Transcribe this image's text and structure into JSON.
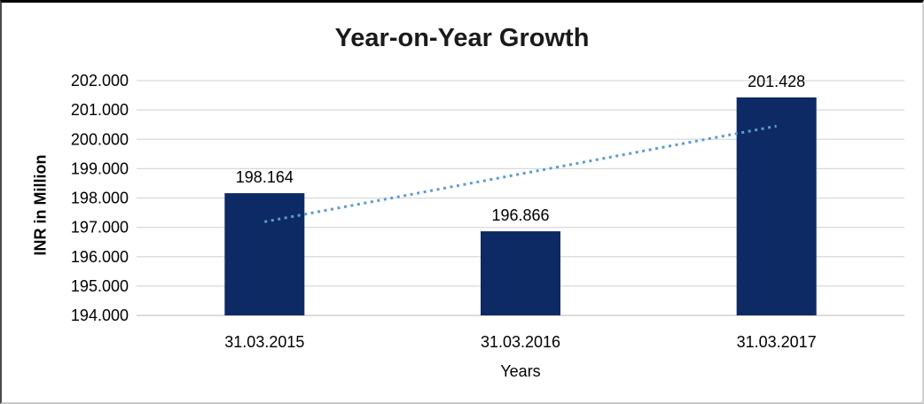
{
  "chart_data": {
    "type": "bar",
    "title": "Year-on-Year Growth",
    "xlabel": "Years",
    "ylabel": "INR in Million",
    "categories": [
      "31.03.2015",
      "31.03.2016",
      "31.03.2017"
    ],
    "values": [
      198.164,
      196.866,
      201.428
    ],
    "data_labels": [
      "198.164",
      "196.866",
      "201.428"
    ],
    "ylim": [
      194,
      202
    ],
    "y_ticks": [
      {
        "value": 194,
        "label": "194.000"
      },
      {
        "value": 195,
        "label": "195.000"
      },
      {
        "value": 196,
        "label": "196.000"
      },
      {
        "value": 197,
        "label": "197.000"
      },
      {
        "value": 198,
        "label": "198.000"
      },
      {
        "value": 199,
        "label": "199.000"
      },
      {
        "value": 200,
        "label": "200.000"
      },
      {
        "value": 201,
        "label": "201.000"
      },
      {
        "value": 202,
        "label": "202.000"
      }
    ],
    "grid": true,
    "legend": false,
    "trendline": {
      "style": "dotted",
      "start_value": 197.19,
      "end_value": 200.45
    },
    "colors": {
      "bar": "#0e2a64",
      "trendline": "#5b9bd5",
      "gridline": "#d9d9d9",
      "axisline": "#c6c6c6",
      "title": "#1a1a1a",
      "text": "#000000"
    }
  }
}
